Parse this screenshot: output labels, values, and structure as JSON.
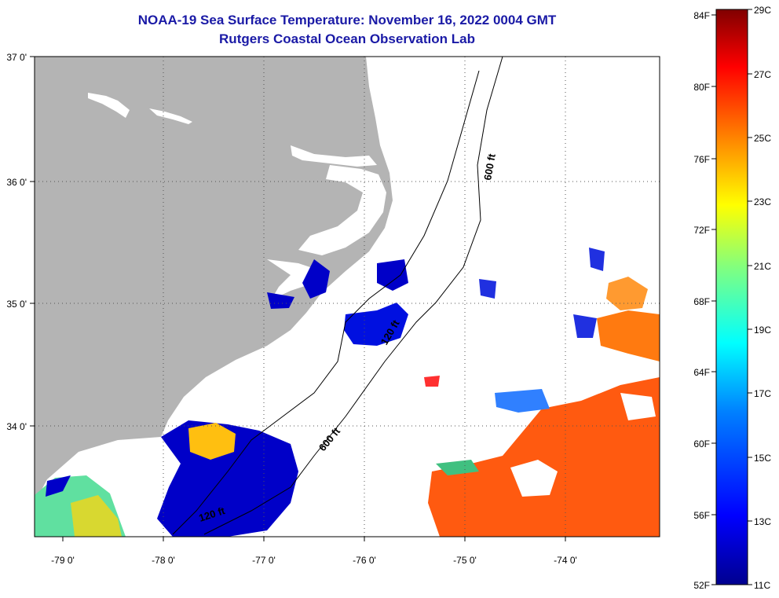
{
  "title": {
    "line1": "NOAA-19 Sea Surface Temperature:  November 16, 2022 0004 GMT",
    "line2": "Rutgers Coastal Ocean Observation Lab"
  },
  "map": {
    "lon_labels": [
      "-79 0'",
      "-78 0'",
      "-77 0'",
      "-76 0'",
      "-75 0'",
      "-74 0'"
    ],
    "lat_labels": [
      "37 0'",
      "36 0'",
      "35 0'",
      "34 0'"
    ],
    "contour_labels": [
      "600 ft",
      "120 ft",
      "600 ft",
      "120 ft"
    ],
    "land_color": "#b4b4b4",
    "cloud_color": "#ffffff"
  },
  "colorbar": {
    "fahrenheit_labels": [
      "84F",
      "80F",
      "76F",
      "72F",
      "68F",
      "64F",
      "60F",
      "56F",
      "52F"
    ],
    "celsius_labels": [
      "29C",
      "27C",
      "25C",
      "23C",
      "21C",
      "19C",
      "17C",
      "15C",
      "13C",
      "11C"
    ],
    "colors": [
      "#800000",
      "#ff0000",
      "#ff8000",
      "#ffff00",
      "#80ff80",
      "#00ffff",
      "#0080ff",
      "#0000ff",
      "#00008f"
    ]
  }
}
